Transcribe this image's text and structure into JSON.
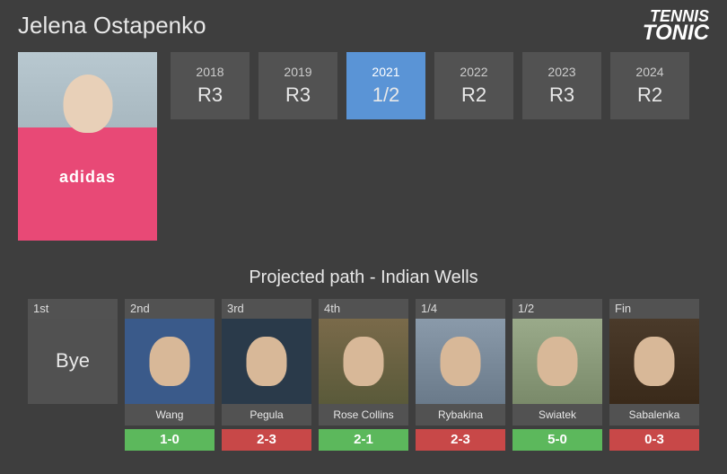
{
  "player_name": "Jelena Ostapenko",
  "logo": {
    "line1": "TENNIS",
    "line2": "TONIC"
  },
  "year_results": [
    {
      "year": "2018",
      "result": "R3",
      "highlighted": false
    },
    {
      "year": "2019",
      "result": "R3",
      "highlighted": false
    },
    {
      "year": "2021",
      "result": "1/2",
      "highlighted": true
    },
    {
      "year": "2022",
      "result": "R2",
      "highlighted": false
    },
    {
      "year": "2023",
      "result": "R3",
      "highlighted": false
    },
    {
      "year": "2024",
      "result": "R2",
      "highlighted": false
    }
  ],
  "projected_title": "Projected path - Indian Wells",
  "path": [
    {
      "round": "1st",
      "name": "Bye",
      "h2h": "",
      "h2h_color": "",
      "is_bye": true,
      "bg": ""
    },
    {
      "round": "2nd",
      "name": "Wang",
      "h2h": "1-0",
      "h2h_color": "green",
      "is_bye": false,
      "bg": "photo-bg-1"
    },
    {
      "round": "3rd",
      "name": "Pegula",
      "h2h": "2-3",
      "h2h_color": "red",
      "is_bye": false,
      "bg": "photo-bg-2"
    },
    {
      "round": "4th",
      "name": "Rose Collins",
      "h2h": "2-1",
      "h2h_color": "green",
      "is_bye": false,
      "bg": "photo-bg-3"
    },
    {
      "round": "1/4",
      "name": "Rybakina",
      "h2h": "2-3",
      "h2h_color": "red",
      "is_bye": false,
      "bg": "photo-bg-4"
    },
    {
      "round": "1/2",
      "name": "Swiatek",
      "h2h": "5-0",
      "h2h_color": "green",
      "is_bye": false,
      "bg": "photo-bg-5"
    },
    {
      "round": "Fin",
      "name": "Sabalenka",
      "h2h": "0-3",
      "h2h_color": "red",
      "is_bye": false,
      "bg": "photo-bg-6"
    }
  ]
}
